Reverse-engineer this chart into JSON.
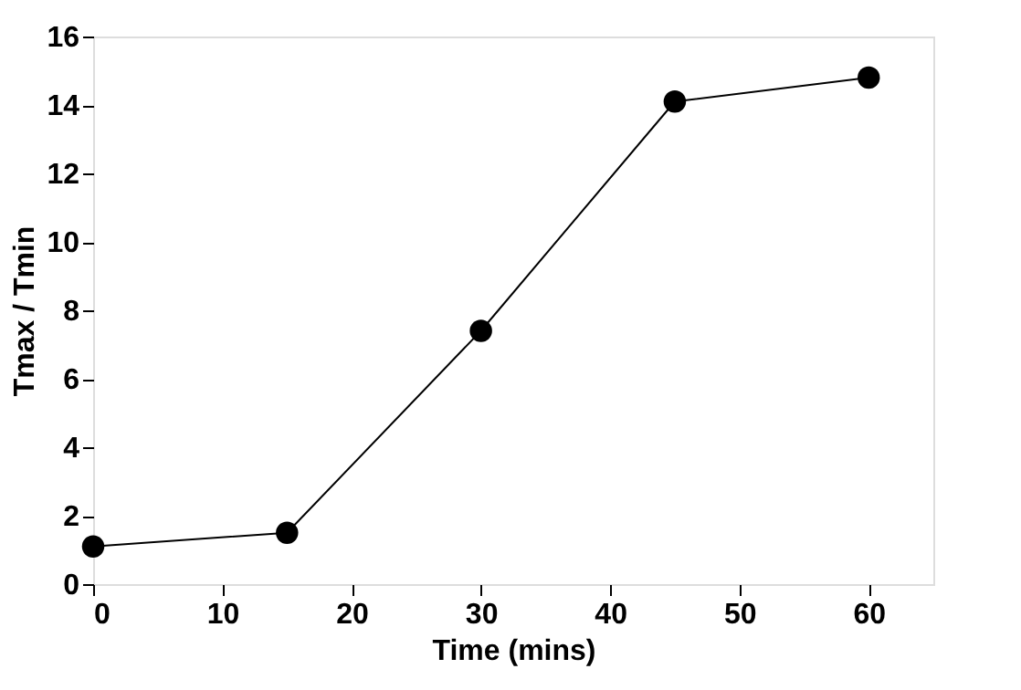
{
  "chart_data": {
    "type": "line",
    "xlabel": "Time (mins)",
    "ylabel": "Tmax / Tmin",
    "x": [
      0,
      15,
      30,
      45,
      60
    ],
    "series": [
      {
        "color": "#000000",
        "values": [
          1.1,
          1.5,
          7.4,
          14.1,
          14.8
        ]
      }
    ],
    "xlim": [
      0,
      65
    ],
    "xticks": [
      0,
      10,
      20,
      30,
      40,
      50,
      60
    ],
    "ylim": [
      0,
      16
    ],
    "yticks": [
      0,
      2,
      4,
      6,
      8,
      10,
      12,
      14,
      16
    ],
    "grid": false,
    "marker": "circle",
    "line_style": "solid"
  }
}
